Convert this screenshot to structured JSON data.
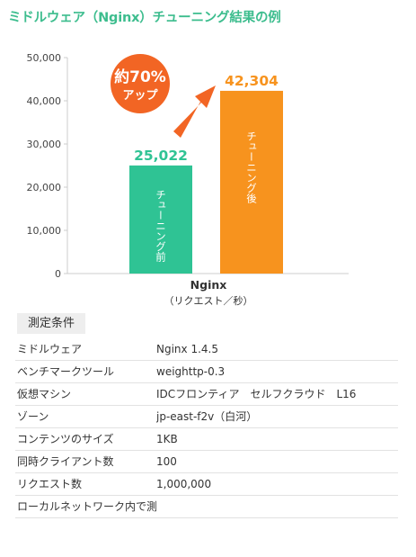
{
  "title": "ミドルウェア（Nginx）チューニング結果の例",
  "chart_data": {
    "type": "bar",
    "categories": [
      "Nginx"
    ],
    "xlabel": "Nginx",
    "xlabel_sub": "（リクエスト／秒）",
    "ylabel": "",
    "ylim": [
      0,
      50000
    ],
    "yticks": [
      0,
      10000,
      20000,
      30000,
      40000,
      50000
    ],
    "ytick_labels": [
      "0",
      "10,000",
      "20,000",
      "30,000",
      "40,000",
      "50,000"
    ],
    "grid": false,
    "series": [
      {
        "name": "チューニング前",
        "values": [
          25022
        ],
        "value_label": "25,022",
        "color": "#2fc394"
      },
      {
        "name": "チューニング後",
        "values": [
          42304
        ],
        "value_label": "42,304",
        "color": "#f7931e"
      }
    ],
    "annotation": {
      "line1": "約70%",
      "line2": "アップ",
      "color": "#f26524"
    }
  },
  "conditions": {
    "label": "測定条件",
    "rows": [
      {
        "key": "ミドルウェア",
        "value": "Nginx 1.4.5"
      },
      {
        "key": "ベンチマークツール",
        "value": "weighttp-0.3"
      },
      {
        "key": "仮想マシン",
        "value": "IDCフロンティア　セルフクラウド　L16"
      },
      {
        "key": "ゾーン",
        "value": "jp-east-f2v（白河）"
      },
      {
        "key": "コンテンツのサイズ",
        "value": "1KB"
      },
      {
        "key": "同時クライアント数",
        "value": "100"
      },
      {
        "key": "リクエスト数",
        "value": "1,000,000"
      },
      {
        "key": "ローカルネットワーク内で測定",
        "value": ""
      }
    ]
  }
}
